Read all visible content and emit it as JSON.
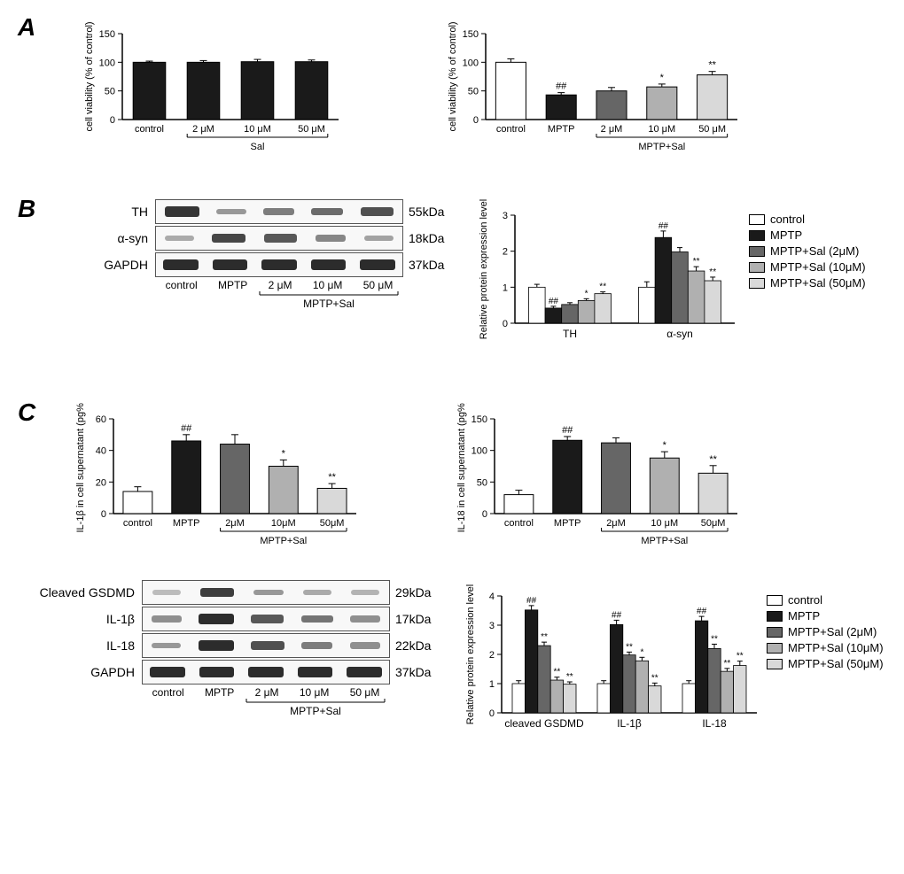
{
  "colors": {
    "control": "#ffffff",
    "mptp": "#1a1a1a",
    "sal2": "#666666",
    "sal10": "#b0b0b0",
    "sal50": "#d9d9d9",
    "axis": "#000000",
    "band": "#222222"
  },
  "panelA": {
    "label": "A",
    "chart1": {
      "ylabel": "cell viability (% of control)",
      "ylim": [
        0,
        150
      ],
      "ytick_step": 50,
      "categories": [
        "control",
        "2 μM",
        "10 μM",
        "50 μM"
      ],
      "values": [
        100,
        100,
        101,
        101
      ],
      "errors": [
        2,
        3,
        4,
        3
      ],
      "colors": [
        "#1a1a1a",
        "#1a1a1a",
        "#1a1a1a",
        "#1a1a1a"
      ],
      "bracket_label": "Sal",
      "bracket_start": 1,
      "bracket_end": 3
    },
    "chart2": {
      "ylabel": "cell viability (% of control)",
      "ylim": [
        0,
        150
      ],
      "ytick_step": 50,
      "categories": [
        "control",
        "MPTP",
        "2 μM",
        "10 μM",
        "50 μM"
      ],
      "values": [
        100,
        43,
        50,
        57,
        78
      ],
      "errors": [
        6,
        4,
        6,
        5,
        6
      ],
      "colors": [
        "#ffffff",
        "#1a1a1a",
        "#666666",
        "#b0b0b0",
        "#d9d9d9"
      ],
      "annotations": [
        "",
        "##",
        "",
        "*",
        "**"
      ],
      "bracket_label": "MPTP+Sal",
      "bracket_start": 2,
      "bracket_end": 4
    }
  },
  "panelB": {
    "label": "B",
    "blots": [
      {
        "name": "TH",
        "size": "55kDa",
        "intensities": [
          0.9,
          0.35,
          0.5,
          0.6,
          0.75
        ]
      },
      {
        "name": "α-syn",
        "size": "18kDa",
        "intensities": [
          0.25,
          0.8,
          0.7,
          0.45,
          0.3
        ]
      },
      {
        "name": "GAPDH",
        "size": "37kDa",
        "intensities": [
          0.95,
          0.95,
          0.95,
          0.95,
          0.95
        ]
      }
    ],
    "xlabels": [
      "control",
      "MPTP",
      "2 μM",
      "10 μM",
      "50 μM"
    ],
    "bracket_label": "MPTP+Sal",
    "chart": {
      "ylabel": "Relative protein expression level",
      "ylim": [
        0,
        3
      ],
      "ytick_step": 1,
      "groups": [
        "TH",
        "α-syn"
      ],
      "series": [
        {
          "name": "control",
          "color": "#ffffff",
          "values": [
            1.0,
            1.0
          ],
          "errors": [
            0.08,
            0.15
          ],
          "ann": [
            "",
            ""
          ]
        },
        {
          "name": "MPTP",
          "color": "#1a1a1a",
          "values": [
            0.42,
            2.38
          ],
          "errors": [
            0.05,
            0.18
          ],
          "ann": [
            "##",
            "##"
          ]
        },
        {
          "name": "MPTP+Sal (2μM)",
          "color": "#666666",
          "values": [
            0.52,
            1.98
          ],
          "errors": [
            0.05,
            0.12
          ],
          "ann": [
            "",
            ""
          ]
        },
        {
          "name": "MPTP+Sal (10μM)",
          "color": "#b0b0b0",
          "values": [
            0.63,
            1.45
          ],
          "errors": [
            0.05,
            0.12
          ],
          "ann": [
            "*",
            "**"
          ]
        },
        {
          "name": "MPTP+Sal (50μM)",
          "color": "#d9d9d9",
          "values": [
            0.82,
            1.18
          ],
          "errors": [
            0.05,
            0.1
          ],
          "ann": [
            "**",
            "**"
          ]
        }
      ]
    },
    "legend": [
      {
        "label": "control",
        "color": "#ffffff"
      },
      {
        "label": "MPTP",
        "color": "#1a1a1a"
      },
      {
        "label": "MPTP+Sal (2μM)",
        "color": "#666666"
      },
      {
        "label": "MPTP+Sal (10μM)",
        "color": "#b0b0b0"
      },
      {
        "label": "MPTP+Sal (50μM)",
        "color": "#d9d9d9"
      }
    ]
  },
  "panelC": {
    "label": "C",
    "chart1": {
      "ylabel": "IL-1β in cell supernatant (pg%)",
      "ylim": [
        0,
        60
      ],
      "ytick_step": 20,
      "categories": [
        "control",
        "MPTP",
        "2μM",
        "10μM",
        "50μM"
      ],
      "values": [
        14,
        46,
        44,
        30,
        16
      ],
      "errors": [
        3,
        4,
        6,
        4,
        3
      ],
      "colors": [
        "#ffffff",
        "#1a1a1a",
        "#666666",
        "#b0b0b0",
        "#d9d9d9"
      ],
      "annotations": [
        "",
        "##",
        "",
        "*",
        "**"
      ],
      "bracket_label": "MPTP+Sal",
      "bracket_start": 2,
      "bracket_end": 4
    },
    "chart2": {
      "ylabel": "IL-18 in cell supernatant (pg%)",
      "ylim": [
        0,
        150
      ],
      "ytick_step": 50,
      "categories": [
        "control",
        "MPTP",
        "2μM",
        "10 μM",
        "50μM"
      ],
      "values": [
        30,
        116,
        112,
        88,
        64
      ],
      "errors": [
        7,
        6,
        8,
        10,
        12
      ],
      "colors": [
        "#ffffff",
        "#1a1a1a",
        "#666666",
        "#b0b0b0",
        "#d9d9d9"
      ],
      "annotations": [
        "",
        "##",
        "",
        "*",
        "**"
      ],
      "bracket_label": "MPTP+Sal",
      "bracket_start": 2,
      "bracket_end": 4
    },
    "blots": [
      {
        "name": "Cleaved GSDMD",
        "size": "29kDa",
        "intensities": [
          0.15,
          0.85,
          0.35,
          0.25,
          0.2
        ]
      },
      {
        "name": "IL-1β",
        "size": "17kDa",
        "intensities": [
          0.4,
          0.95,
          0.7,
          0.55,
          0.4
        ]
      },
      {
        "name": "IL-18",
        "size": "22kDa",
        "intensities": [
          0.35,
          0.95,
          0.75,
          0.5,
          0.4
        ]
      },
      {
        "name": "GAPDH",
        "size": "37kDa",
        "intensities": [
          0.95,
          0.95,
          0.95,
          0.95,
          0.95
        ]
      }
    ],
    "xlabels": [
      "control",
      "MPTP",
      "2 μM",
      "10 μM",
      "50 μM"
    ],
    "bracket_label": "MPTP+Sal",
    "chart3": {
      "ylabel": "Relative protein expression level",
      "ylim": [
        0,
        4
      ],
      "ytick_step": 1,
      "groups": [
        "cleaved GSDMD",
        "IL-1β",
        "IL-18"
      ],
      "series": [
        {
          "name": "control",
          "color": "#ffffff",
          "values": [
            1.0,
            1.0,
            1.0
          ],
          "errors": [
            0.1,
            0.1,
            0.1
          ],
          "ann": [
            "",
            "",
            ""
          ]
        },
        {
          "name": "MPTP",
          "color": "#1a1a1a",
          "values": [
            3.52,
            3.02,
            3.15
          ],
          "errors": [
            0.15,
            0.15,
            0.15
          ],
          "ann": [
            "##",
            "##",
            "##"
          ]
        },
        {
          "name": "MPTP+Sal (2μM)",
          "color": "#666666",
          "values": [
            2.3,
            1.98,
            2.2
          ],
          "errors": [
            0.12,
            0.1,
            0.15
          ],
          "ann": [
            "**",
            "**",
            "**"
          ]
        },
        {
          "name": "MPTP+Sal (10μM)",
          "color": "#b0b0b0",
          "values": [
            1.12,
            1.78,
            1.42
          ],
          "errors": [
            0.1,
            0.12,
            0.1
          ],
          "ann": [
            "**",
            "*",
            "**"
          ]
        },
        {
          "name": "MPTP+Sal (50μM)",
          "color": "#d9d9d9",
          "values": [
            0.98,
            0.92,
            1.62
          ],
          "errors": [
            0.08,
            0.1,
            0.15
          ],
          "ann": [
            "**",
            "**",
            "**"
          ]
        }
      ]
    },
    "legend": [
      {
        "label": "control",
        "color": "#ffffff"
      },
      {
        "label": "MPTP",
        "color": "#1a1a1a"
      },
      {
        "label": "MPTP+Sal (2μM)",
        "color": "#666666"
      },
      {
        "label": "MPTP+Sal (10μM)",
        "color": "#b0b0b0"
      },
      {
        "label": "MPTP+Sal (50μM)",
        "color": "#d9d9d9"
      }
    ]
  }
}
